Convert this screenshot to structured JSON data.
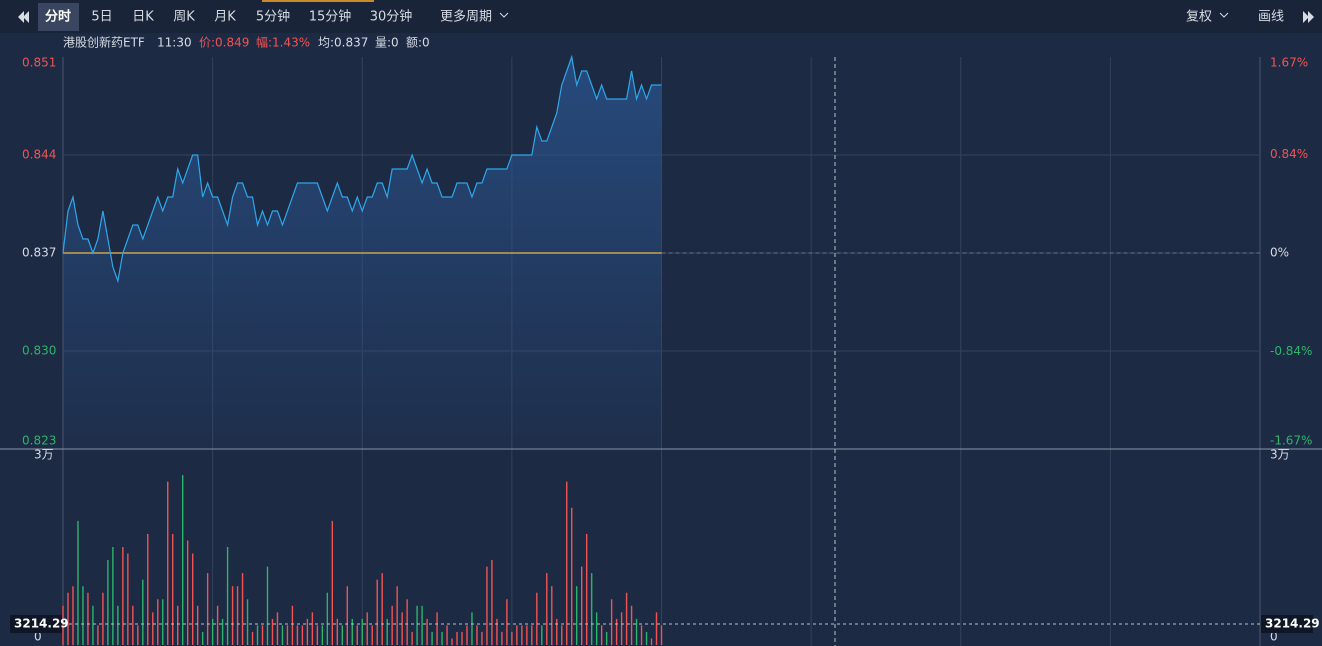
{
  "toolbar": {
    "periods": [
      "分时",
      "5日",
      "日K",
      "周K",
      "月K",
      "5分钟",
      "15分钟",
      "30分钟"
    ],
    "more": "更多周期",
    "right": [
      "复权",
      "画线"
    ]
  },
  "info": {
    "name": "港股创新药ETF",
    "time": "11:30",
    "price": "价:0.849",
    "change": "幅:1.43%",
    "avg": "均:0.837",
    "volume": "量:0",
    "amount": "额:0"
  },
  "chart_data": [
    {
      "type": "line",
      "series": [
        {
          "color": "#2ea7e8",
          "values": [
            0.837,
            0.84,
            0.841,
            0.839,
            0.838,
            0.838,
            0.837,
            0.838,
            0.84,
            0.838,
            0.836,
            0.835,
            0.837,
            0.838,
            0.839,
            0.839,
            0.838,
            0.839,
            0.84,
            0.841,
            0.84,
            0.841,
            0.841,
            0.843,
            0.842,
            0.843,
            0.844,
            0.844,
            0.841,
            0.842,
            0.841,
            0.841,
            0.84,
            0.839,
            0.841,
            0.842,
            0.842,
            0.841,
            0.841,
            0.839,
            0.84,
            0.839,
            0.84,
            0.84,
            0.839,
            0.84,
            0.841,
            0.842,
            0.842,
            0.842,
            0.842,
            0.842,
            0.841,
            0.84,
            0.841,
            0.842,
            0.841,
            0.841,
            0.84,
            0.841,
            0.84,
            0.841,
            0.841,
            0.842,
            0.842,
            0.841,
            0.843,
            0.843,
            0.843,
            0.843,
            0.844,
            0.843,
            0.842,
            0.843,
            0.842,
            0.842,
            0.841,
            0.841,
            0.841,
            0.842,
            0.842,
            0.842,
            0.841,
            0.842,
            0.842,
            0.843,
            0.843,
            0.843,
            0.843,
            0.843,
            0.844,
            0.844,
            0.844,
            0.844,
            0.844,
            0.846,
            0.845,
            0.845,
            0.846,
            0.847,
            0.849,
            0.85,
            0.851,
            0.849,
            0.85,
            0.85,
            0.849,
            0.848,
            0.849,
            0.848,
            0.848,
            0.848,
            0.848,
            0.848,
            0.85,
            0.848,
            0.849,
            0.848,
            0.849,
            0.849,
            0.849
          ]
        }
      ],
      "ylim": [
        0.823,
        0.851
      ],
      "yticks": [
        {
          "value": 0.851,
          "label": "0.851"
        },
        {
          "value": 0.844,
          "label": "0.844"
        },
        {
          "value": 0.837,
          "label": "0.837"
        },
        {
          "value": 0.83,
          "label": "0.830"
        },
        {
          "value": 0.823,
          "label": "0.823"
        }
      ],
      "y2lim": [
        -1.67,
        1.67
      ],
      "y2ticks": [
        {
          "value": 1.67,
          "label": "1.67%"
        },
        {
          "value": 0.84,
          "label": "0.84%"
        },
        {
          "value": 0,
          "label": "0%"
        },
        {
          "value": -0.84,
          "label": "-0.84%"
        },
        {
          "value": -1.67,
          "label": "-1.67%"
        }
      ],
      "reference_line": {
        "value": 0.837,
        "color": "#c9a14a"
      },
      "up_color": "#f05454",
      "down_color": "#2cb46a",
      "grid": true
    },
    {
      "type": "bar",
      "values": [
        6000,
        8000,
        9000,
        19000,
        9000,
        8000,
        6000,
        3000,
        8000,
        13000,
        15000,
        6000,
        15000,
        14000,
        6000,
        3000,
        10000,
        17000,
        5000,
        7000,
        7000,
        25000,
        17000,
        6000,
        26000,
        16000,
        14000,
        6000,
        2000,
        11000,
        4000,
        6000,
        4000,
        15000,
        9000,
        9000,
        11000,
        7000,
        2000,
        3000,
        3000,
        12000,
        4000,
        5000,
        3000,
        3000,
        6000,
        3000,
        3000,
        4000,
        5000,
        3000,
        3000,
        8000,
        19000,
        4000,
        3000,
        9000,
        4000,
        3000,
        4000,
        5000,
        3000,
        10000,
        11000,
        4000,
        6000,
        9000,
        5000,
        7000,
        2000,
        6000,
        6000,
        4000,
        2000,
        5000,
        2000,
        3000,
        1000,
        2000,
        2000,
        3000,
        5000,
        3000,
        2000,
        12000,
        13000,
        4000,
        2000,
        7000,
        2000,
        3000,
        3000,
        3000,
        3000,
        8000,
        3000,
        11000,
        9000,
        4000,
        3000,
        25000,
        21000,
        9000,
        12000,
        17000,
        11000,
        5000,
        3000,
        2000,
        7000,
        4000,
        5000,
        8000,
        6000,
        4000,
        3000,
        2000,
        1000,
        5000,
        3000
      ],
      "ylim": [
        0,
        30000
      ],
      "yticks": [
        {
          "value": 30000,
          "label": "3万"
        },
        0
      ],
      "crosshair": {
        "value": 3214.29
      }
    }
  ]
}
